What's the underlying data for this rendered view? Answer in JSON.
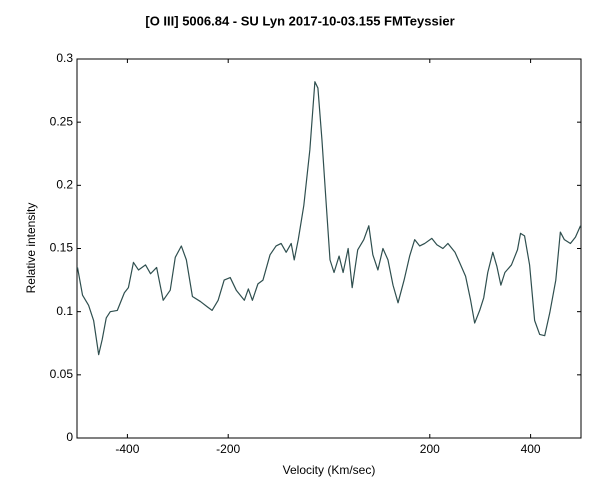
{
  "chart_data": {
    "type": "line",
    "title": "[O III] 5006.84 - SU Lyn   2017-10-03.155     FMTeyssier",
    "x_label": "Velocity (Km/sec)",
    "y_label": "Relative intensity",
    "xlim": [
      -500,
      500
    ],
    "ylim": [
      0,
      0.3
    ],
    "xticks": [
      -400,
      -200,
      200,
      400
    ],
    "yticks": [
      0,
      0.05,
      0.1,
      0.15,
      0.2,
      0.25,
      0.3
    ],
    "x": [
      -499,
      -489,
      -477,
      -467,
      -457,
      -450,
      -442,
      -434,
      -420,
      -406,
      -398,
      -388,
      -378,
      -364,
      -354,
      -342,
      -329,
      -315,
      -305,
      -293,
      -283,
      -271,
      -255,
      -242,
      -232,
      -220,
      -208,
      -196,
      -184,
      -168,
      -160,
      -152,
      -141,
      -131,
      -117,
      -105,
      -95,
      -85,
      -75,
      -69,
      -61,
      -50,
      -38,
      -28,
      -22,
      -14,
      -6,
      2,
      10,
      20,
      28,
      38,
      46,
      57,
      69,
      79,
      87,
      97,
      107,
      117,
      127,
      137,
      149,
      160,
      170,
      180,
      190,
      204,
      214,
      226,
      236,
      250,
      259,
      271,
      281,
      289,
      299,
      307,
      315,
      325,
      333,
      341,
      349,
      362,
      374,
      380,
      388,
      398,
      408,
      418,
      428,
      438,
      450,
      459,
      467,
      479,
      489,
      499
    ],
    "series": [
      {
        "name": "SU Lyn",
        "color": "#2f4f4f",
        "values": [
          0.135,
          0.113,
          0.105,
          0.093,
          0.066,
          0.078,
          0.095,
          0.1,
          0.101,
          0.115,
          0.119,
          0.139,
          0.133,
          0.137,
          0.13,
          0.135,
          0.109,
          0.117,
          0.143,
          0.152,
          0.141,
          0.112,
          0.108,
          0.104,
          0.101,
          0.109,
          0.125,
          0.127,
          0.117,
          0.109,
          0.118,
          0.109,
          0.122,
          0.125,
          0.145,
          0.152,
          0.154,
          0.147,
          0.154,
          0.141,
          0.157,
          0.184,
          0.228,
          0.282,
          0.277,
          0.236,
          0.188,
          0.141,
          0.131,
          0.144,
          0.131,
          0.15,
          0.119,
          0.149,
          0.157,
          0.168,
          0.145,
          0.133,
          0.15,
          0.141,
          0.121,
          0.107,
          0.125,
          0.144,
          0.157,
          0.152,
          0.154,
          0.158,
          0.153,
          0.15,
          0.154,
          0.147,
          0.139,
          0.128,
          0.109,
          0.091,
          0.101,
          0.111,
          0.131,
          0.147,
          0.136,
          0.121,
          0.131,
          0.137,
          0.149,
          0.162,
          0.16,
          0.137,
          0.093,
          0.082,
          0.081,
          0.099,
          0.125,
          0.163,
          0.157,
          0.154,
          0.159,
          0.168
        ]
      }
    ]
  }
}
